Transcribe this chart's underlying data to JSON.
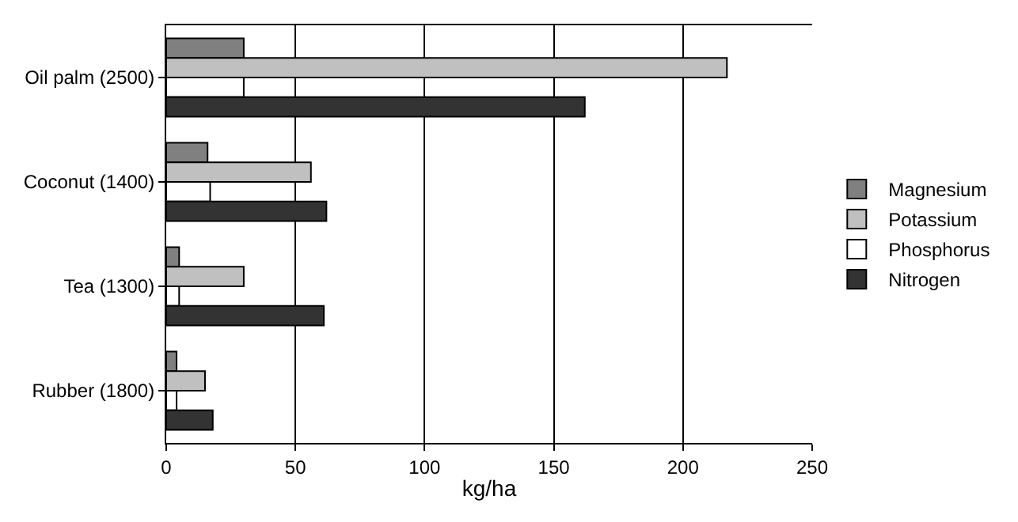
{
  "chart_data": {
    "type": "bar",
    "orientation": "horizontal",
    "xlabel": "kg/ha",
    "categories": [
      "Oil palm (2500)",
      "Coconut (1400)",
      "Tea (1300)",
      "Rubber (1800)"
    ],
    "series": [
      {
        "name": "Magnesium",
        "color": "#808080",
        "values": [
          30,
          16,
          5,
          4
        ]
      },
      {
        "name": "Potassium",
        "color": "#c0c0c0",
        "values": [
          217,
          56,
          30,
          15
        ]
      },
      {
        "name": "Phosphorus",
        "color": "#ffffff",
        "values": [
          30,
          17,
          5,
          4
        ]
      },
      {
        "name": "Nitrogen",
        "color": "#333333",
        "values": [
          162,
          62,
          61,
          18
        ]
      }
    ],
    "xlim": [
      0,
      250
    ],
    "xticks": [
      0,
      50,
      100,
      150,
      200,
      250
    ],
    "grid": "x",
    "legend": "right"
  }
}
